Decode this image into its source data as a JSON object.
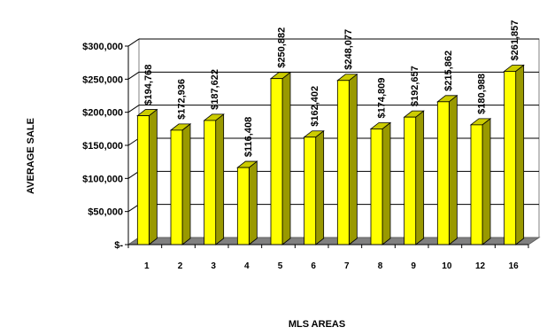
{
  "chart_data": {
    "type": "bar",
    "title": "",
    "xlabel": "MLS AREAS",
    "ylabel": "AVERAGE SALE",
    "categories": [
      "1",
      "2",
      "3",
      "4",
      "5",
      "6",
      "7",
      "8",
      "9",
      "10",
      "12",
      "16"
    ],
    "values": [
      194768,
      172936,
      187622,
      116408,
      250882,
      162402,
      248077,
      174809,
      192657,
      215862,
      180988,
      261857
    ],
    "data_labels": [
      "$194,768",
      "$172,936",
      "$187,622",
      "$116,408",
      "$250,882",
      "$162,402",
      "$248,077",
      "$174,809",
      "$192,657",
      "$215,862",
      "$180,988",
      "$261,857"
    ],
    "y_ticks": [
      0,
      50000,
      100000,
      150000,
      200000,
      250000,
      300000
    ],
    "y_tick_labels": [
      "$-",
      "$50,000",
      "$100,000",
      "$150,000",
      "$200,000",
      "$250,000",
      "$300,000"
    ],
    "ylim": [
      0,
      300000
    ],
    "grid": true,
    "legend": "none",
    "style": "3d-bar",
    "colors": {
      "bar_front": "#ffff00",
      "bar_side": "#999900",
      "bar_top": "#cccc00",
      "wall": "#ffffff",
      "floor": "#808080",
      "grid": "#000000"
    }
  }
}
